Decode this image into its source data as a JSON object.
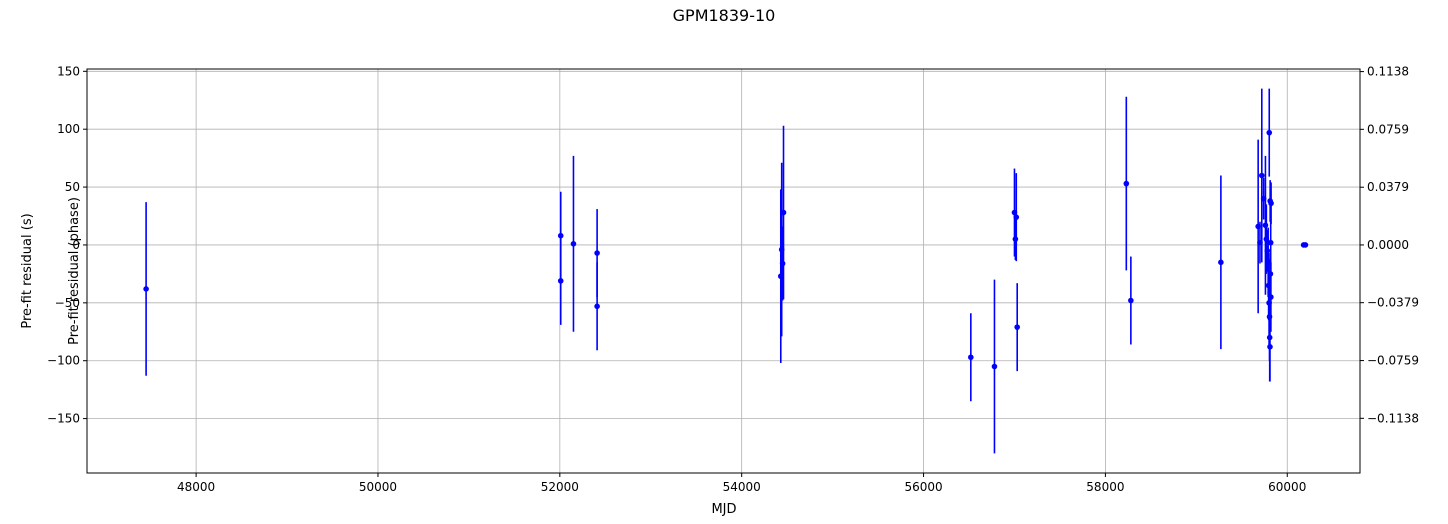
{
  "chart_data": {
    "type": "scatter",
    "title": "GPM1839-10",
    "xlabel": "MJD",
    "ylabel": "Pre-fit residual (s)",
    "ylabel_right": "Pre-fit residual (phase)",
    "xlim": [
      46800,
      60800
    ],
    "ylim": [
      -197,
      152
    ],
    "ylim_right": [
      -0.1497,
      0.1155
    ],
    "grid": true,
    "marker_color": "#0000ff",
    "xticks": [
      {
        "value": 48000,
        "label": "48000"
      },
      {
        "value": 50000,
        "label": "50000"
      },
      {
        "value": 52000,
        "label": "52000"
      },
      {
        "value": 54000,
        "label": "54000"
      },
      {
        "value": 56000,
        "label": "56000"
      },
      {
        "value": 58000,
        "label": "58000"
      },
      {
        "value": 60000,
        "label": "60000"
      }
    ],
    "yticks": [
      {
        "value": 150,
        "label": "150"
      },
      {
        "value": 100,
        "label": "100"
      },
      {
        "value": 50,
        "label": "50"
      },
      {
        "value": 0,
        "label": "0"
      },
      {
        "value": -50,
        "label": "−50"
      },
      {
        "value": -100,
        "label": "−100"
      },
      {
        "value": -150,
        "label": "−150"
      }
    ],
    "yticks_right": [
      {
        "value": 0.1138,
        "label": "0.1138"
      },
      {
        "value": 0.0759,
        "label": "0.0759"
      },
      {
        "value": 0.0379,
        "label": "0.0379"
      },
      {
        "value": 0.0,
        "label": "0.0000"
      },
      {
        "value": -0.0379,
        "label": "−0.0379"
      },
      {
        "value": -0.0759,
        "label": "−0.0759"
      },
      {
        "value": -0.1138,
        "label": "−0.1138"
      }
    ],
    "series": [
      {
        "points": [
          {
            "x": 47450,
            "y": -38,
            "err": 75
          },
          {
            "x": 52010,
            "y": 8,
            "err": 38
          },
          {
            "x": 52010,
            "y": -31,
            "err": 38
          },
          {
            "x": 52150,
            "y": 1,
            "err": 76
          },
          {
            "x": 52410,
            "y": -7,
            "err": 38
          },
          {
            "x": 52410,
            "y": -53,
            "err": 38
          },
          {
            "x": 54430,
            "y": -27,
            "err": 75
          },
          {
            "x": 54440,
            "y": -4,
            "err": 75
          },
          {
            "x": 54450,
            "y": -16,
            "err": 32
          },
          {
            "x": 54460,
            "y": 28,
            "err": 75
          },
          {
            "x": 56520,
            "y": -97,
            "err": 38
          },
          {
            "x": 56780,
            "y": -105,
            "err": 75
          },
          {
            "x": 57000,
            "y": 28,
            "err": 38
          },
          {
            "x": 57010,
            "y": 5,
            "err": 18
          },
          {
            "x": 57020,
            "y": 24,
            "err": 38
          },
          {
            "x": 57030,
            "y": -71,
            "err": 38
          },
          {
            "x": 58230,
            "y": 53,
            "err": 75
          },
          {
            "x": 58280,
            "y": -48,
            "err": 38
          },
          {
            "x": 59270,
            "y": -15,
            "err": 75
          },
          {
            "x": 59680,
            "y": 16,
            "err": 75
          },
          {
            "x": 59700,
            "y": 2,
            "err": 18
          },
          {
            "x": 59720,
            "y": 60,
            "err": 75
          },
          {
            "x": 59740,
            "y": 40,
            "err": 18
          },
          {
            "x": 59760,
            "y": 17,
            "err": 60
          },
          {
            "x": 59770,
            "y": 5,
            "err": 30
          },
          {
            "x": 59780,
            "y": -5,
            "err": 18
          },
          {
            "x": 59790,
            "y": -15,
            "err": 30
          },
          {
            "x": 59795,
            "y": -35,
            "err": 30
          },
          {
            "x": 59800,
            "y": -50,
            "err": 38
          },
          {
            "x": 59802,
            "y": 97,
            "err": 38
          },
          {
            "x": 59805,
            "y": -62,
            "err": 38
          },
          {
            "x": 59807,
            "y": -80,
            "err": 38
          },
          {
            "x": 59810,
            "y": -88,
            "err": 30
          },
          {
            "x": 59812,
            "y": 38,
            "err": 18
          },
          {
            "x": 59815,
            "y": -25,
            "err": 18
          },
          {
            "x": 59818,
            "y": 2,
            "err": 18
          },
          {
            "x": 59820,
            "y": -45,
            "err": 30
          },
          {
            "x": 59822,
            "y": 36,
            "err": 18
          },
          {
            "x": 60180,
            "y": 0,
            "err": 1
          },
          {
            "x": 60200,
            "y": 0,
            "err": 1
          }
        ]
      }
    ]
  }
}
